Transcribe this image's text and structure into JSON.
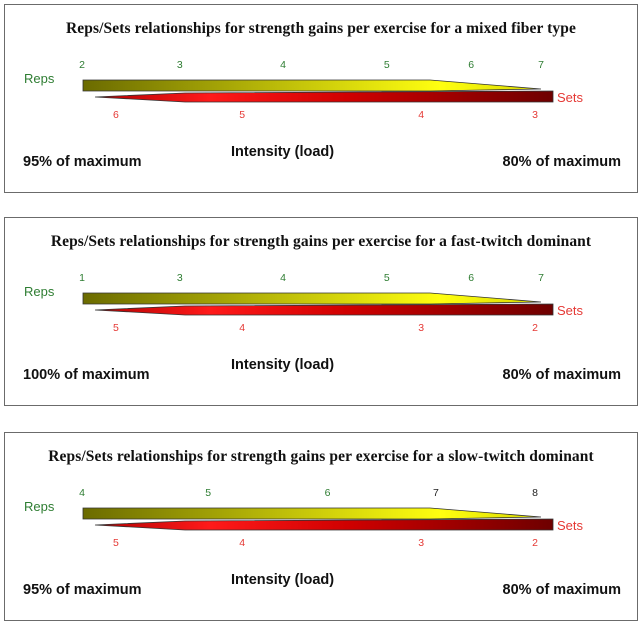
{
  "panels": [
    {
      "title": "Reps/Sets relationships for strength gains per exercise for a mixed fiber type",
      "reps_label": "Reps",
      "sets_label": "Sets",
      "reps_ticks": [
        {
          "text": "2",
          "pos": 0.0,
          "color": "#2e7d32"
        },
        {
          "text": "3",
          "pos": 0.213,
          "color": "#2e7d32"
        },
        {
          "text": "4",
          "pos": 0.438,
          "color": "#2e7d32"
        },
        {
          "text": "5",
          "pos": 0.664,
          "color": "#2e7d32"
        },
        {
          "text": "6",
          "pos": 0.848,
          "color": "#2e7d32"
        },
        {
          "text": "7",
          "pos": 1.0,
          "color": "#2e7d32"
        }
      ],
      "sets_ticks": [
        {
          "text": "6",
          "pos": 0.074,
          "color": "#e53935"
        },
        {
          "text": "5",
          "pos": 0.349,
          "color": "#e53935"
        },
        {
          "text": "4",
          "pos": 0.739,
          "color": "#e53935"
        },
        {
          "text": "3",
          "pos": 0.987,
          "color": "#e53935"
        }
      ],
      "xlabel": "Intensity (load)",
      "left_label": "95% of maximum",
      "right_label": "80% of maximum"
    },
    {
      "title": "Reps/Sets relationships for strength gains per exercise for a fast-twitch dominant",
      "reps_label": "Reps",
      "sets_label": "Sets",
      "reps_ticks": [
        {
          "text": "1",
          "pos": 0.0,
          "color": "#2e7d32"
        },
        {
          "text": "3",
          "pos": 0.213,
          "color": "#2e7d32"
        },
        {
          "text": "4",
          "pos": 0.438,
          "color": "#2e7d32"
        },
        {
          "text": "5",
          "pos": 0.664,
          "color": "#2e7d32"
        },
        {
          "text": "6",
          "pos": 0.848,
          "color": "#2e7d32"
        },
        {
          "text": "7",
          "pos": 1.0,
          "color": "#2e7d32"
        }
      ],
      "sets_ticks": [
        {
          "text": "5",
          "pos": 0.074,
          "color": "#e53935"
        },
        {
          "text": "4",
          "pos": 0.349,
          "color": "#e53935"
        },
        {
          "text": "3",
          "pos": 0.739,
          "color": "#e53935"
        },
        {
          "text": "2",
          "pos": 0.987,
          "color": "#e53935"
        }
      ],
      "xlabel": "Intensity (load)",
      "left_label": "100% of maximum",
      "right_label": "80% of maximum"
    },
    {
      "title": "Reps/Sets relationships for strength gains per exercise for a slow-twitch dominant",
      "reps_label": "Reps",
      "sets_label": "Sets",
      "reps_ticks": [
        {
          "text": "4",
          "pos": 0.0,
          "color": "#2e7d32"
        },
        {
          "text": "5",
          "pos": 0.275,
          "color": "#2e7d32"
        },
        {
          "text": "6",
          "pos": 0.535,
          "color": "#2e7d32"
        },
        {
          "text": "7",
          "pos": 0.771,
          "color": "#222222"
        },
        {
          "text": "8",
          "pos": 0.987,
          "color": "#222222"
        }
      ],
      "sets_ticks": [
        {
          "text": "5",
          "pos": 0.074,
          "color": "#e53935"
        },
        {
          "text": "4",
          "pos": 0.349,
          "color": "#e53935"
        },
        {
          "text": "3",
          "pos": 0.739,
          "color": "#e53935"
        },
        {
          "text": "2",
          "pos": 0.987,
          "color": "#e53935"
        }
      ],
      "xlabel": "Intensity (load)",
      "left_label": "95% of maximum",
      "right_label": "80% of maximum"
    }
  ],
  "colors": {
    "reps_dark": "#6b6b00",
    "reps_light": "#ffff10",
    "sets_bright": "#ff1a1a",
    "sets_dark": "#6e0000"
  }
}
